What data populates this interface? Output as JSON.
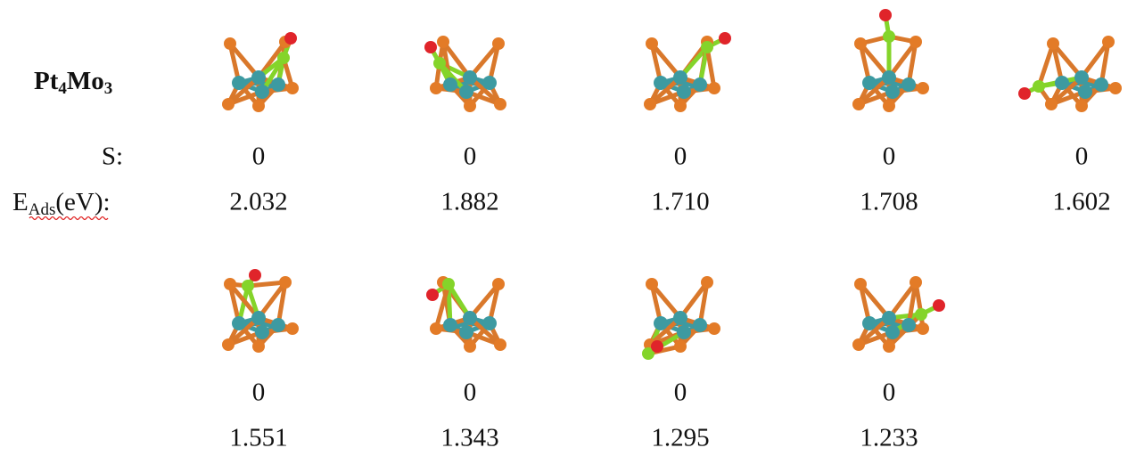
{
  "title": {
    "parts": [
      "Pt",
      "4",
      "Mo",
      "3"
    ]
  },
  "row_labels": {
    "spin": "S:",
    "energy": {
      "parts": [
        "E",
        "Ads",
        "(eV):"
      ]
    }
  },
  "structures": [
    {
      "spin": "0",
      "energy": "2.032"
    },
    {
      "spin": "0",
      "energy": "1.882"
    },
    {
      "spin": "0",
      "energy": "1.710"
    },
    {
      "spin": "0",
      "energy": "1.708"
    },
    {
      "spin": "0",
      "energy": "1.602"
    },
    {
      "spin": "0",
      "energy": "1.551"
    },
    {
      "spin": "0",
      "energy": "1.343"
    },
    {
      "spin": "0",
      "energy": "1.295"
    },
    {
      "spin": "0",
      "energy": "1.233"
    }
  ]
}
